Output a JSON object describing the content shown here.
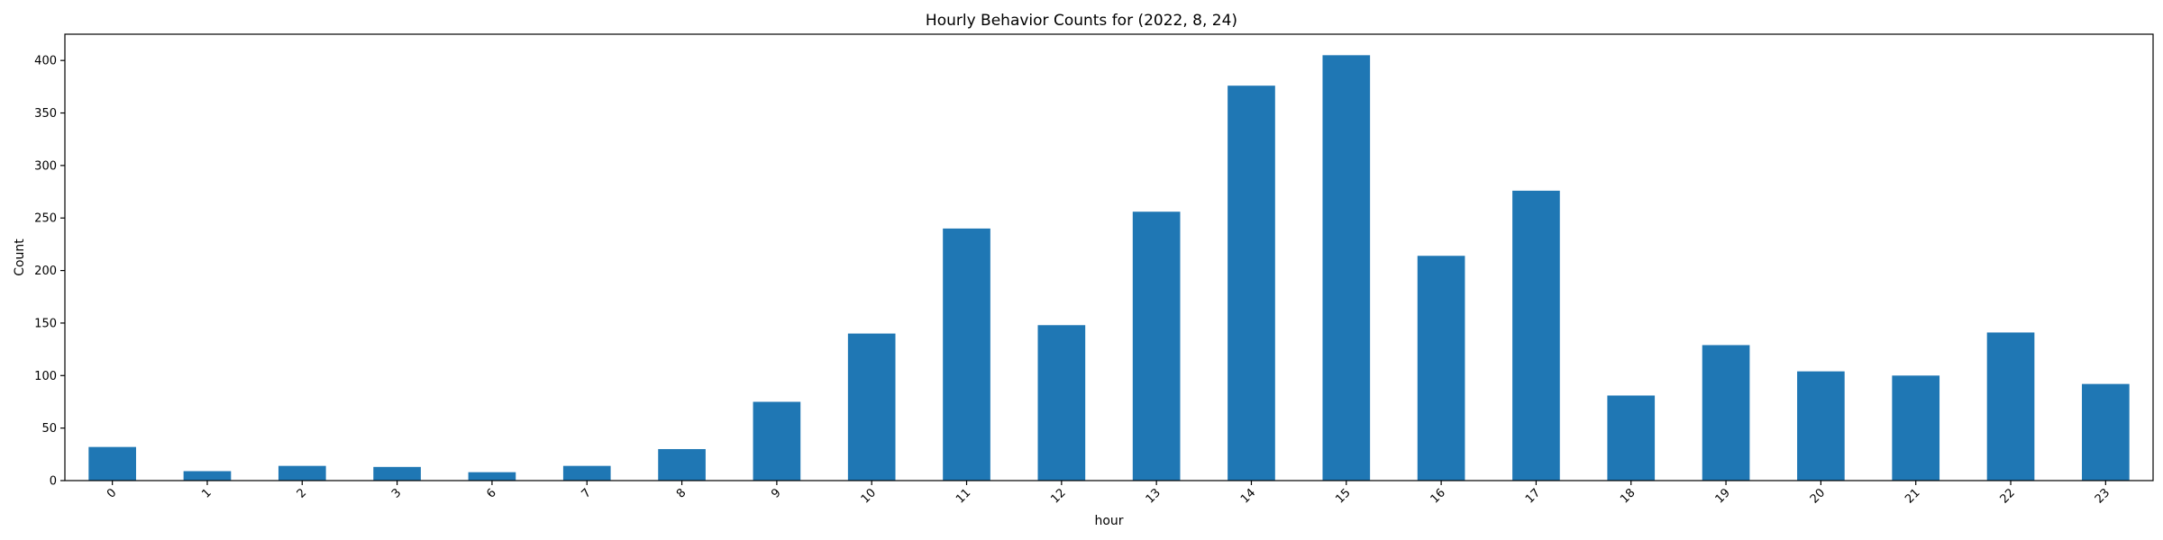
{
  "chart_data": {
    "type": "bar",
    "title": "Hourly Behavior Counts for (2022, 8, 24)",
    "xlabel": "hour",
    "ylabel": "Count",
    "categories": [
      "0",
      "1",
      "2",
      "3",
      "6",
      "7",
      "8",
      "9",
      "10",
      "11",
      "12",
      "13",
      "14",
      "15",
      "16",
      "17",
      "18",
      "19",
      "20",
      "21",
      "22",
      "23"
    ],
    "values": [
      32,
      9,
      14,
      13,
      8,
      14,
      30,
      75,
      140,
      240,
      148,
      256,
      376,
      405,
      214,
      276,
      81,
      129,
      104,
      100,
      141,
      92
    ],
    "ylim": [
      0,
      425
    ],
    "yticks": [
      0,
      50,
      100,
      150,
      200,
      250,
      300,
      350,
      400
    ],
    "grid": false,
    "legend": "none",
    "bar_color": "#1f77b4"
  }
}
